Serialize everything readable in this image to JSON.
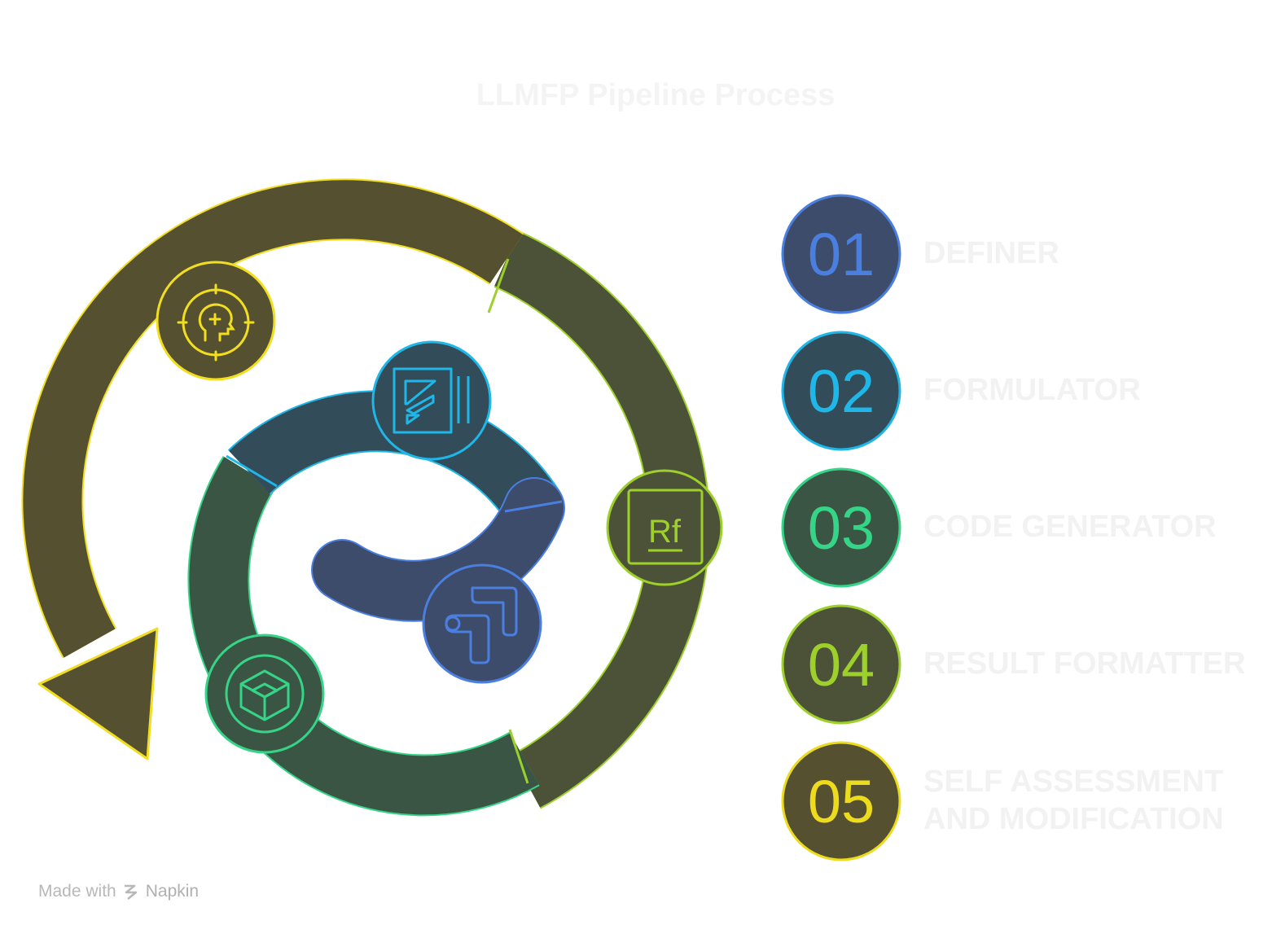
{
  "title": "LLMFP Pipeline Process",
  "colors": {
    "definer": "#f2de21",
    "formulator": "#1fb6e8",
    "code_generator": "#35d487",
    "result_formatter": "#9ed02b",
    "self_assessment": "#ecdc1d",
    "inner": "#4a7fe0"
  },
  "steps": [
    {
      "number": "01",
      "label": "DEFINER"
    },
    {
      "number": "02",
      "label": "FORMULATOR"
    },
    {
      "number": "03",
      "label": "CODE GENERATOR"
    },
    {
      "number": "04",
      "label": "RESULT FORMATTER"
    },
    {
      "number": "05",
      "label_line1": "SELF ASSESSMENT",
      "label_line2": "AND MODIFICATION"
    }
  ],
  "icons": {
    "definer": "head-target-icon",
    "formulator": "formula-board-icon",
    "code_generator": "box-3d-icon",
    "result_formatter": "rf-element-icon",
    "self_assessment": "flow-arrows-icon"
  },
  "rf_text": "Rf",
  "footer": {
    "made_with": "Made with",
    "brand": "Napkin"
  }
}
